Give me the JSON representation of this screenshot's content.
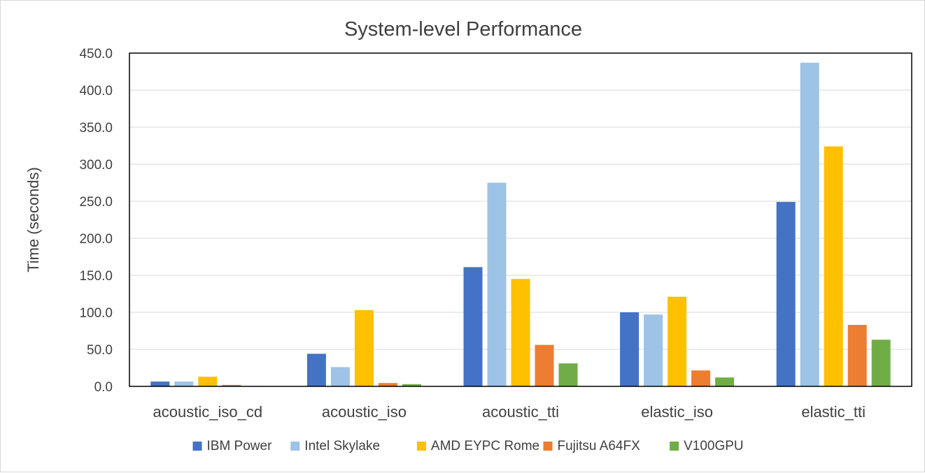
{
  "chart_data": {
    "type": "bar",
    "title": "System-level Performance",
    "xlabel": "",
    "ylabel": "Time (seconds)",
    "ylim": [
      0,
      450
    ],
    "yticks": [
      "0.0",
      "50.0",
      "100.0",
      "150.0",
      "200.0",
      "250.0",
      "300.0",
      "350.0",
      "400.0",
      "450.0"
    ],
    "categories": [
      "acoustic_iso_cd",
      "acoustic_iso",
      "acoustic_tti",
      "elastic_iso",
      "elastic_tti"
    ],
    "series": [
      {
        "name": "IBM Power",
        "color": "#4472c4",
        "values": [
          6.5,
          44,
          161,
          100,
          249
        ]
      },
      {
        "name": "Intel Skylake",
        "color": "#9dc3e6",
        "values": [
          6.5,
          26,
          275,
          97,
          437
        ]
      },
      {
        "name": "AMD EYPC Rome",
        "color": "#ffc000",
        "values": [
          13,
          103,
          145,
          121,
          324
        ]
      },
      {
        "name": "Fujitsu A64FX",
        "color": "#ed7d31",
        "values": [
          2,
          4.5,
          56,
          21.5,
          83
        ]
      },
      {
        "name": "V100GPU",
        "color": "#70ad47",
        "values": [
          0.5,
          3,
          31,
          12,
          63
        ]
      }
    ],
    "grid": true,
    "legend_position": "bottom"
  }
}
